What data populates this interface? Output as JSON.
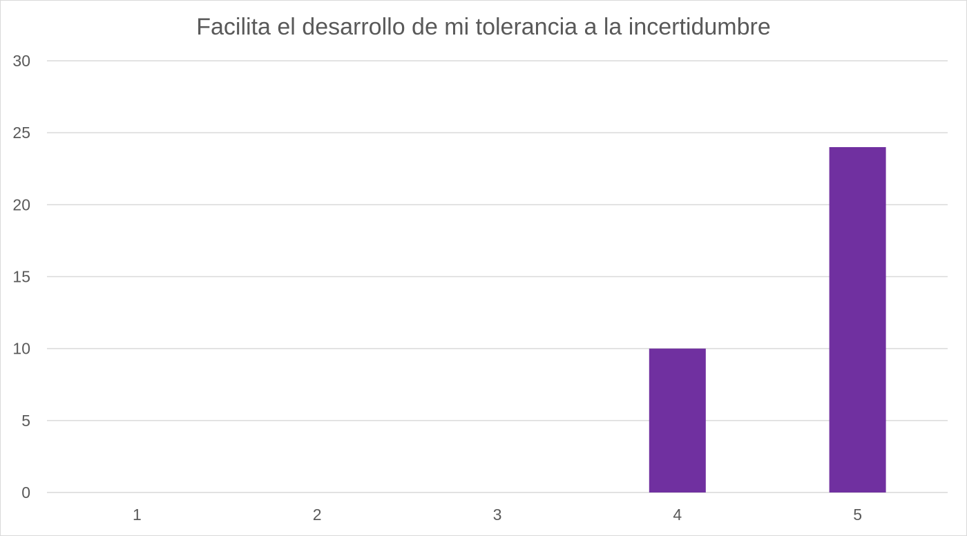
{
  "chart_data": {
    "type": "bar",
    "title": "Facilita el desarrollo de mi tolerancia a la incertidumbre",
    "categories": [
      "1",
      "2",
      "3",
      "4",
      "5"
    ],
    "values": [
      0,
      0,
      0,
      10,
      24
    ],
    "ylim": [
      0,
      30
    ],
    "yticks": [
      "0",
      "5",
      "10",
      "15",
      "20",
      "25",
      "30"
    ],
    "grid": true,
    "legend": "none",
    "bar_color": "#7030a0",
    "grid_color": "#d9d9d9",
    "text_color": "#595959"
  }
}
